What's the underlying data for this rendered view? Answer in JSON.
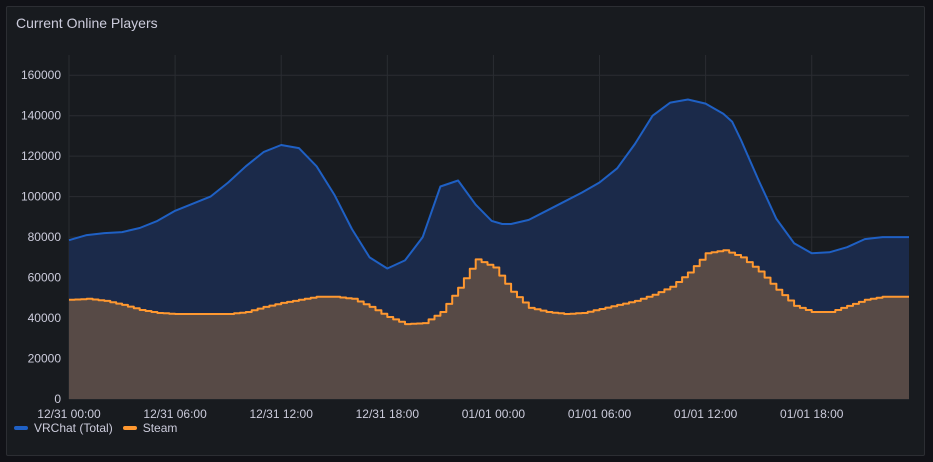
{
  "panel": {
    "title": "Current Online Players"
  },
  "colors": {
    "vrchat": "#1f60c4",
    "vrchat_fill": "#1b2a4a",
    "steam": "#ff9830",
    "steam_fill": "#574a46",
    "grid": "#2a2d32"
  },
  "legend": [
    {
      "name": "VRChat (Total)",
      "color": "#1f60c4"
    },
    {
      "name": "Steam",
      "color": "#ff9830"
    }
  ],
  "chart_data": {
    "type": "area",
    "title": "Current Online Players",
    "xlabel": "",
    "ylabel": "",
    "ylim": [
      0,
      170000
    ],
    "xlim_hours": [
      0,
      47.5
    ],
    "x_tick_labels": [
      "12/31 00:00",
      "12/31 06:00",
      "12/31 12:00",
      "12/31 18:00",
      "01/01 00:00",
      "01/01 06:00",
      "01/01 12:00",
      "01/01 18:00"
    ],
    "x_tick_hours": [
      0,
      6,
      12,
      18,
      24,
      30,
      36,
      42
    ],
    "y_ticks": [
      0,
      20000,
      40000,
      60000,
      80000,
      100000,
      120000,
      140000,
      160000
    ],
    "y_tick_labels": [
      "0",
      "20000",
      "40000",
      "60000",
      "80000",
      "100000",
      "120000",
      "140000",
      "160000"
    ],
    "grid": true,
    "legend_position": "bottom-left",
    "series": [
      {
        "name": "VRChat (Total)",
        "x": [
          0,
          1,
          2,
          3,
          4,
          5,
          6,
          7,
          8,
          9,
          10,
          11,
          12,
          13,
          14,
          15,
          16,
          17,
          18,
          19,
          20,
          21,
          22,
          23,
          23.9,
          24.5,
          25,
          26,
          27,
          28,
          29,
          30,
          31,
          32,
          33,
          34,
          35,
          36,
          37,
          37.5,
          38,
          38.5,
          39,
          40,
          41,
          42,
          43,
          44,
          45,
          46,
          47,
          47.5
        ],
        "values": [
          78500,
          81000,
          82000,
          82500,
          84500,
          88000,
          93000,
          96500,
          100000,
          107000,
          115000,
          122000,
          125500,
          124000,
          115000,
          101000,
          84000,
          70000,
          64500,
          68500,
          80000,
          105000,
          108000,
          96000,
          88000,
          86500,
          86500,
          88500,
          93000,
          97500,
          102000,
          107000,
          114000,
          126000,
          140000,
          146500,
          148000,
          146000,
          141000,
          137000,
          128000,
          118000,
          108000,
          89000,
          77000,
          72000,
          72500,
          75000,
          79000,
          80000,
          80000,
          80000
        ]
      },
      {
        "name": "Steam",
        "x": [
          0,
          1,
          2,
          3,
          4,
          5,
          6,
          7,
          8,
          9,
          10,
          11,
          12,
          13,
          14,
          15,
          16,
          17,
          18,
          19,
          20,
          21,
          22,
          23,
          24,
          25,
          26,
          27,
          28,
          29,
          30,
          31,
          32,
          33,
          34,
          35,
          36,
          37,
          38,
          39,
          40,
          41,
          42,
          43,
          44,
          45,
          46,
          47,
          47.5
        ],
        "values": [
          49000,
          49500,
          48500,
          46500,
          44000,
          42500,
          42000,
          42000,
          42000,
          42000,
          43000,
          45500,
          47500,
          49000,
          50500,
          50500,
          49500,
          45500,
          40500,
          37000,
          37500,
          43000,
          55000,
          69000,
          65000,
          53000,
          45000,
          43000,
          42000,
          42500,
          44500,
          46500,
          48500,
          51500,
          55500,
          62500,
          72000,
          73500,
          70000,
          63000,
          54000,
          46000,
          43000,
          43000,
          46000,
          49000,
          50500,
          50500,
          50500
        ]
      }
    ]
  }
}
